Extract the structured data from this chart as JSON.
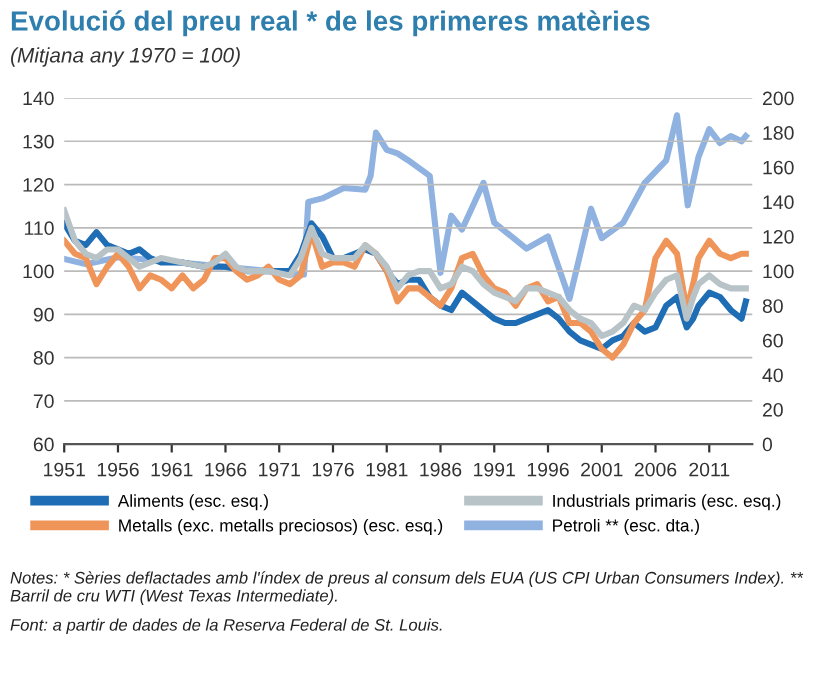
{
  "chart_data": {
    "type": "line",
    "title": "Evolució del preu real * de les primeres matèries",
    "subtitle": "(Mitjana any 1970 = 100)",
    "xlim": [
      1951,
      2015
    ],
    "xticks": [
      1951,
      1956,
      1961,
      1966,
      1971,
      1976,
      1981,
      1986,
      1991,
      1996,
      2001,
      2006,
      2011
    ],
    "ylim": [
      60,
      140
    ],
    "yticks": [
      60,
      70,
      80,
      90,
      100,
      110,
      120,
      130,
      140
    ],
    "y2lim": [
      0,
      200
    ],
    "y2ticks": [
      0,
      20,
      40,
      60,
      80,
      100,
      120,
      140,
      160,
      180,
      200
    ],
    "grid": "y",
    "legend": "bottom",
    "line_style": "solid",
    "marker": "none",
    "series": [
      {
        "name": "Aliments (esc. esq.)",
        "color": "#1f6db5",
        "x": [
          1951,
          1952,
          1953,
          1954,
          1955,
          1956,
          1957,
          1958,
          1959,
          1960,
          1962,
          1964,
          1966,
          1968,
          1970,
          1972,
          1973,
          1974,
          1975,
          1976,
          1977,
          1978,
          1979,
          1980,
          1981,
          1982,
          1983,
          1984,
          1985,
          1986,
          1987,
          1988,
          1989,
          1990,
          1991,
          1992,
          1993,
          1994,
          1995,
          1996,
          1997,
          1998,
          1999,
          2000,
          2001,
          2002,
          2003,
          2004,
          2005,
          2006,
          2007,
          2008,
          2008.9,
          2009.5,
          2010,
          2011,
          2012,
          2013,
          2014,
          2014.4
        ],
        "values": [
          111,
          107,
          106,
          109,
          106,
          105,
          104,
          105,
          103,
          102,
          102,
          101,
          101,
          100,
          100,
          100,
          104,
          111,
          108,
          103,
          103,
          104,
          105,
          104,
          100,
          97,
          98,
          98,
          94,
          92,
          91,
          95,
          93,
          91,
          89,
          88,
          88,
          89,
          90,
          91,
          89,
          86,
          84,
          83,
          82,
          84,
          85,
          88,
          86,
          87,
          92,
          94,
          87,
          89,
          92,
          95,
          94,
          91,
          89,
          93
        ]
      },
      {
        "name": "Metalls (exc. metalls preciosos) (esc. esq.)",
        "color": "#f0955a",
        "x": [
          1951,
          1952,
          1953,
          1954,
          1955,
          1956,
          1957,
          1958,
          1959,
          1960,
          1961,
          1962,
          1963,
          1964,
          1965,
          1966,
          1967,
          1968,
          1969,
          1970,
          1971,
          1972,
          1973,
          1974,
          1975,
          1976,
          1977,
          1978,
          1979,
          1980,
          1981,
          1982,
          1983,
          1984,
          1985,
          1986,
          1987,
          1988,
          1989,
          1990,
          1991,
          1992,
          1993,
          1994,
          1995,
          1996,
          1997,
          1998,
          1999,
          2000,
          2001,
          2002,
          2003,
          2004,
          2005,
          2006,
          2007,
          2008,
          2008.9,
          2009.5,
          2010,
          2011,
          2012,
          2013,
          2014,
          2014.4
        ],
        "values": [
          107,
          104,
          103,
          97,
          101,
          104,
          101,
          96,
          99,
          98,
          96,
          99,
          96,
          98,
          103,
          103,
          100,
          98,
          99,
          101,
          98,
          97,
          99,
          109,
          101,
          102,
          102,
          101,
          106,
          104,
          100,
          93,
          96,
          96,
          94,
          92,
          96,
          103,
          104,
          99,
          96,
          95,
          92,
          96,
          97,
          93,
          94,
          88,
          88,
          86,
          82,
          80,
          83,
          88,
          91,
          103,
          107,
          104,
          91,
          97,
          103,
          107,
          104,
          103,
          104,
          104
        ]
      },
      {
        "name": "Industrials primaris (esc. esq.)",
        "color": "#b8c3c8",
        "x": [
          1951,
          1952,
          1953,
          1954,
          1955,
          1956,
          1958,
          1960,
          1962,
          1964,
          1965,
          1966,
          1967,
          1968,
          1970,
          1972,
          1973,
          1974,
          1975,
          1976,
          1978,
          1979,
          1980,
          1981,
          1982,
          1983,
          1984,
          1985,
          1986,
          1987,
          1988,
          1989,
          1990,
          1991,
          1992,
          1993,
          1994,
          1995,
          1996,
          1997,
          1998,
          1999,
          2000,
          2001,
          2002,
          2003,
          2004,
          2005,
          2006,
          2007,
          2008,
          2008.9,
          2009.5,
          2010,
          2011,
          2012,
          2013,
          2014,
          2014.4
        ],
        "values": [
          114,
          107,
          104,
          103,
          105,
          105,
          101,
          103,
          102,
          101,
          102,
          104,
          101,
          100,
          100,
          99,
          103,
          110,
          104,
          103,
          103,
          106,
          104,
          101,
          96,
          99,
          100,
          100,
          96,
          97,
          101,
          100,
          97,
          95,
          94,
          93,
          96,
          96,
          95,
          94,
          91,
          89,
          88,
          85,
          86,
          88,
          92,
          91,
          95,
          98,
          99,
          89,
          94,
          97,
          99,
          97,
          96,
          96,
          96
        ]
      },
      {
        "name": "Petroli ** (esc. dta.)",
        "color": "#8fb2e0",
        "axis": "y2",
        "x": [
          1951,
          1953,
          1956,
          1960,
          1965,
          1970,
          1972,
          1973.3,
          1973.7,
          1975,
          1977,
          1979,
          1979.5,
          1980,
          1981,
          1982,
          1983,
          1985,
          1986,
          1987,
          1988,
          1990,
          1991,
          1994,
          1996,
          1998,
          2000,
          2001,
          2003,
          2005,
          2007,
          2008,
          2009,
          2010,
          2011,
          2012,
          2013,
          2014,
          2014.4
        ],
        "values": [
          107,
          104,
          108,
          106,
          103,
          100,
          98,
          98,
          140,
          142,
          148,
          147,
          155,
          180,
          170,
          168,
          164,
          155,
          99,
          132,
          124,
          151,
          128,
          113,
          120,
          84,
          136,
          119,
          128,
          151,
          164,
          190,
          138,
          166,
          182,
          174,
          178,
          175,
          178
        ]
      }
    ],
    "annotations": [
      "Notes: * Sèries deflactades amb l'índex de preus al consum dels EUA (US CPI Urban Consumers Index). ** Barril de cru WTI (West Texas Intermediate).",
      "Font: a partir de dades de la Reserva Federal de St. Louis."
    ]
  }
}
